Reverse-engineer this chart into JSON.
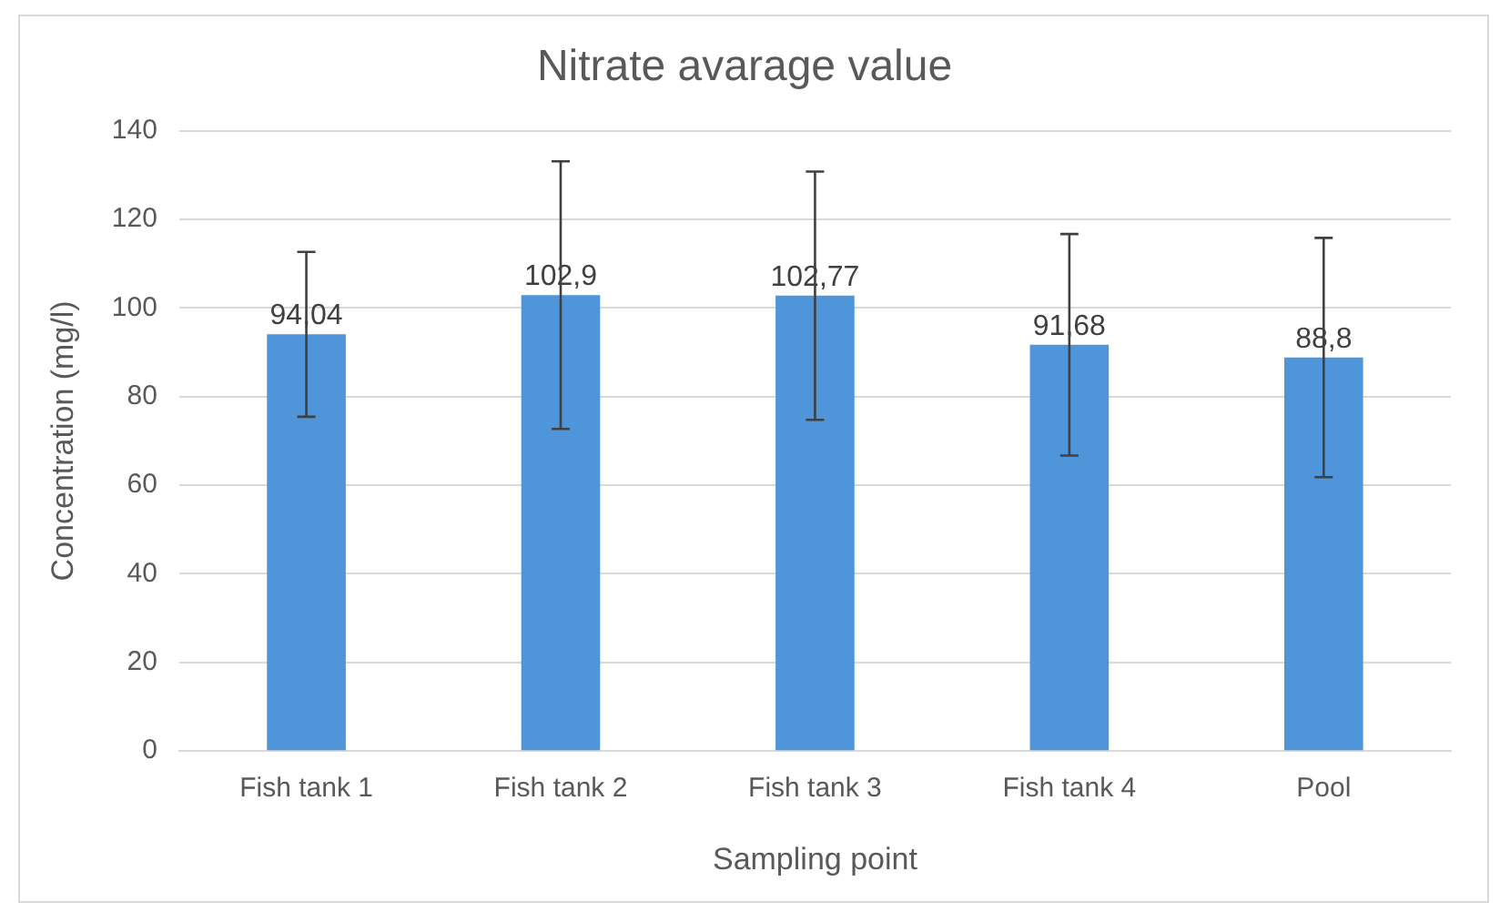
{
  "chart_data": {
    "type": "bar",
    "title": "Nitrate avarage value",
    "xlabel": "Sampling point",
    "ylabel": "Concentration (mg/l)",
    "categories": [
      "Fish tank 1",
      "Fish tank 2",
      "Fish tank 3",
      "Fish tank 4",
      "Pool"
    ],
    "values": [
      94.04,
      102.9,
      102.77,
      91.68,
      88.8
    ],
    "value_labels": [
      "94,04",
      "102,9",
      "102,77",
      "91,68",
      "88,8"
    ],
    "errors": [
      18.6,
      30.2,
      28,
      25,
      27
    ],
    "color": "#4e95d9",
    "ylim": [
      0,
      140
    ],
    "yticks": [
      0,
      20,
      40,
      60,
      80,
      100,
      120,
      140
    ],
    "grid": "y",
    "legend": false
  }
}
